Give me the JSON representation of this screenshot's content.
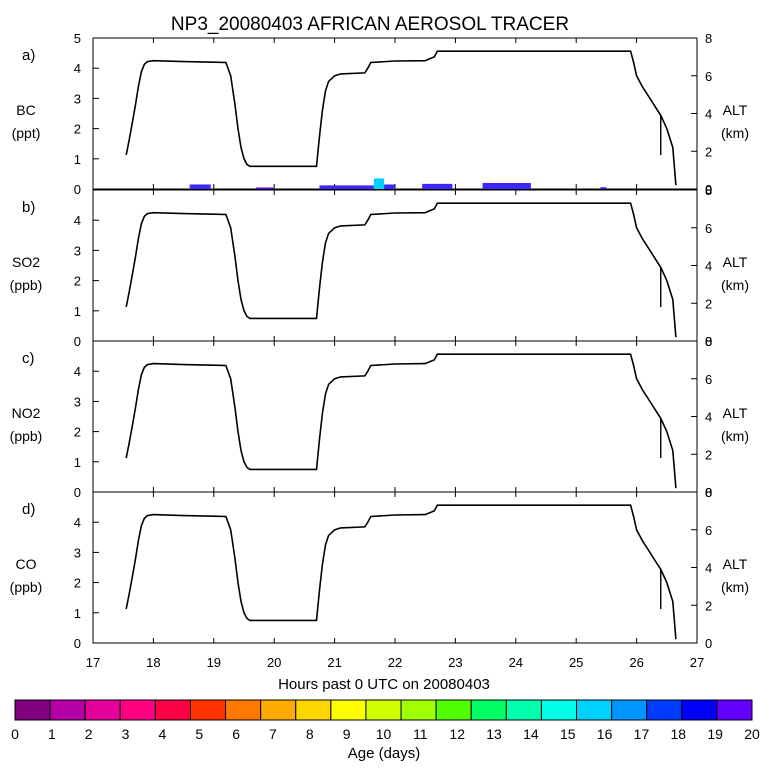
{
  "title": "NP3_20080403 AFRICAN AEROSOL TRACER",
  "xlabel": "Hours past 0 UTC on 20080403",
  "x_ticks": [
    17,
    18,
    19,
    20,
    21,
    22,
    23,
    24,
    25,
    26,
    27
  ],
  "xlim": [
    17,
    27
  ],
  "right_axis": {
    "label": "ALT",
    "unit": "(km)",
    "ylim": [
      0,
      8
    ],
    "ticks": [
      0,
      2,
      4,
      6,
      8
    ]
  },
  "panels": [
    {
      "letter": "a)",
      "species": "BC",
      "unit": "(ppt)",
      "ylim": [
        0,
        5
      ],
      "ticks": [
        0,
        1,
        2,
        3,
        4,
        5
      ]
    },
    {
      "letter": "b)",
      "species": "SO2",
      "unit": "(ppb)",
      "ylim": [
        0,
        5
      ],
      "ticks": [
        0,
        1,
        2,
        3,
        4
      ]
    },
    {
      "letter": "c)",
      "species": "NO2",
      "unit": "(ppb)",
      "ylim": [
        0,
        5
      ],
      "ticks": [
        0,
        1,
        2,
        3,
        4
      ]
    },
    {
      "letter": "d)",
      "species": "CO",
      "unit": "(ppb)",
      "ylim": [
        0,
        5
      ],
      "ticks": [
        0,
        1,
        2,
        3,
        4
      ]
    }
  ],
  "chart_data": {
    "type": "line",
    "series": [
      {
        "axis": "ALT (km)",
        "x": [
          17.55,
          17.6,
          17.65,
          17.7,
          17.75,
          17.8,
          17.85,
          17.9,
          18.0,
          18.5,
          19.0,
          19.2,
          19.28,
          19.35,
          19.4,
          19.45,
          19.5,
          19.55,
          19.6,
          20.7,
          20.75,
          20.8,
          20.85,
          20.9,
          21.0,
          21.1,
          21.5,
          21.55,
          21.6,
          22.0,
          22.5,
          22.65,
          22.7,
          25.9,
          25.95,
          26.0,
          26.1,
          26.2,
          26.3,
          26.4,
          26.5,
          26.6,
          26.65
        ],
        "y": [
          1.8,
          2.6,
          3.5,
          4.4,
          5.4,
          6.2,
          6.6,
          6.75,
          6.8,
          6.75,
          6.72,
          6.7,
          6.0,
          4.5,
          3.2,
          2.2,
          1.6,
          1.3,
          1.2,
          1.2,
          2.8,
          4.2,
          5.2,
          5.7,
          6.0,
          6.1,
          6.15,
          6.4,
          6.7,
          6.78,
          6.8,
          7.0,
          7.3,
          7.3,
          6.7,
          6.0,
          5.4,
          4.9,
          4.4,
          3.9,
          3.2,
          2.2,
          0.2
        ]
      }
    ],
    "age_colorbar": {
      "label": "Age (days)",
      "ticks": [
        0,
        1,
        2,
        3,
        4,
        5,
        6,
        7,
        8,
        9,
        10,
        11,
        12,
        13,
        14,
        15,
        16,
        17,
        18,
        19,
        20
      ],
      "colors": [
        "#800080",
        "#b400a5",
        "#e6009b",
        "#ff0082",
        "#ff0046",
        "#ff3200",
        "#ff7800",
        "#ffaa00",
        "#ffd700",
        "#ffff00",
        "#d2ff00",
        "#a0ff00",
        "#50ff00",
        "#00ff64",
        "#00ffaf",
        "#00ffe6",
        "#00d2ff",
        "#0096ff",
        "#003cff",
        "#0000ff",
        "#6400ff"
      ]
    },
    "bc_tracer": [
      {
        "x0": 18.6,
        "x1": 18.95,
        "y": 0.15,
        "color": "#3c28ff"
      },
      {
        "x0": 19.7,
        "x1": 20.0,
        "y": 0.05,
        "color": "#6400ff"
      },
      {
        "x0": 20.75,
        "x1": 21.65,
        "y": 0.12,
        "color": "#3c28ff"
      },
      {
        "x0": 21.65,
        "x1": 21.82,
        "y": 0.35,
        "color": "#00d2ff"
      },
      {
        "x0": 21.82,
        "x1": 22.0,
        "y": 0.15,
        "color": "#3c28ff"
      },
      {
        "x0": 22.45,
        "x1": 22.95,
        "y": 0.17,
        "color": "#3c28ff"
      },
      {
        "x0": 23.45,
        "x1": 24.25,
        "y": 0.2,
        "color": "#3c28ff"
      },
      {
        "x0": 25.4,
        "x1": 25.5,
        "y": 0.06,
        "color": "#3c28ff"
      }
    ]
  }
}
